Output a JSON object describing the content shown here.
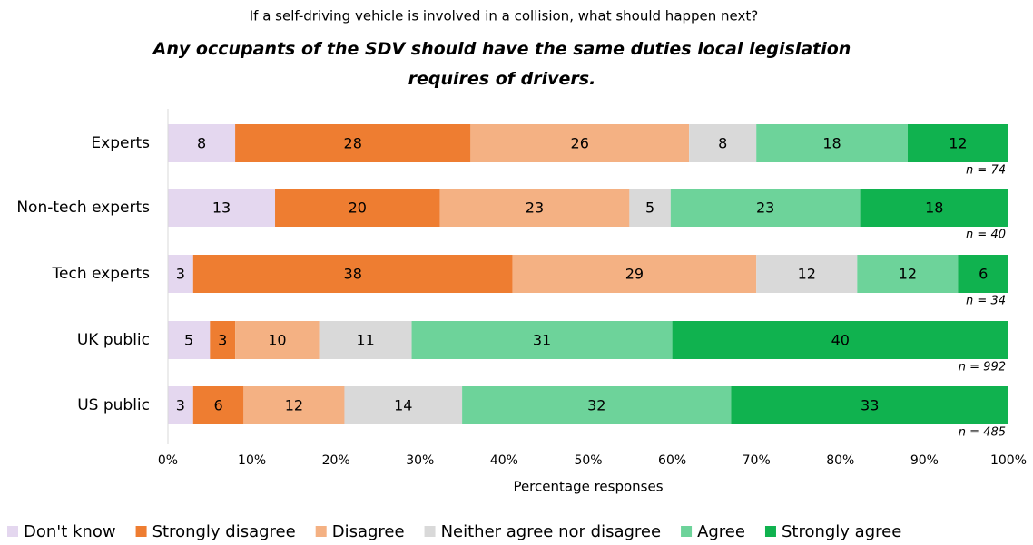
{
  "chart_data": {
    "type": "bar",
    "title": "If a self-driving vehicle is involved in a collision, what should happen next?",
    "subtitle": "Any occupants of the SDV should have the same duties local legislation requires of drivers.",
    "x_label": "Percentage responses",
    "categories": [
      "Experts",
      "Non-tech experts",
      "Tech experts",
      "UK public",
      "US public"
    ],
    "annotations": [
      "n = 74",
      "n = 40",
      "n = 34",
      "n = 992",
      "n = 485"
    ],
    "series": [
      {
        "name": "Don't know",
        "color": "#e4d7ef",
        "values": [
          8,
          13,
          3,
          5,
          3
        ]
      },
      {
        "name": "Strongly disagree",
        "color": "#ee7d31",
        "values": [
          28,
          20,
          38,
          3,
          6
        ]
      },
      {
        "name": "Disagree",
        "color": "#f4b183",
        "values": [
          26,
          23,
          29,
          10,
          12
        ]
      },
      {
        "name": "Neither agree nor disagree",
        "color": "#d9d9d9",
        "values": [
          8,
          5,
          12,
          11,
          14
        ]
      },
      {
        "name": "Agree",
        "color": "#6dd39a",
        "values": [
          18,
          23,
          12,
          31,
          32
        ]
      },
      {
        "name": "Strongly agree",
        "color": "#10b24f",
        "values": [
          12,
          18,
          6,
          40,
          33
        ]
      }
    ],
    "xlim": [
      0,
      100
    ],
    "xticks": [
      {
        "value": 0,
        "label": "0%"
      },
      {
        "value": 10,
        "label": "10%"
      },
      {
        "value": 20,
        "label": "20%"
      },
      {
        "value": 30,
        "label": "30%"
      },
      {
        "value": 40,
        "label": "40%"
      },
      {
        "value": 50,
        "label": "50%"
      },
      {
        "value": 60,
        "label": "60%"
      },
      {
        "value": 70,
        "label": "70%"
      },
      {
        "value": 80,
        "label": "80%"
      },
      {
        "value": 90,
        "label": "90%"
      },
      {
        "value": 100,
        "label": "100%"
      }
    ],
    "grid": false,
    "legend": "bottom"
  }
}
